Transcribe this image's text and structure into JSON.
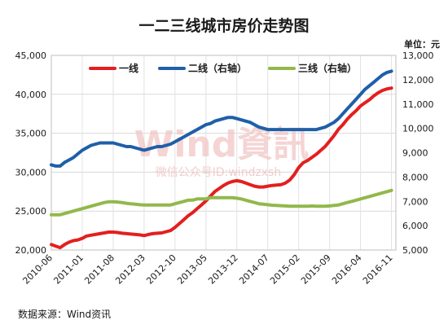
{
  "chart_data": {
    "type": "line",
    "title": "一二三线城市房价走势图",
    "unit_label": "单位：元",
    "source": "数据来源：Wind资讯",
    "watermark": {
      "brand": "Wind資訊",
      "sub": "微信公众号ID:windzxsh"
    },
    "left_axis": {
      "ylim": [
        20000,
        45000
      ],
      "ticks": [
        "20,000",
        "25,000",
        "30,000",
        "35,000",
        "40,000",
        "45,000"
      ]
    },
    "right_axis": {
      "ylim": [
        5000,
        13000
      ],
      "ticks": [
        "5,000",
        "6,000",
        "7,000",
        "8,000",
        "9,000",
        "10,000",
        "11,000",
        "12,000",
        "13,000"
      ]
    },
    "x_ticks": [
      "2010-06",
      "2011-01",
      "2011-08",
      "2012-03",
      "2012-10",
      "2013-05",
      "2013-12",
      "2014-07",
      "2015-02",
      "2015-09",
      "2016-04",
      "2016-11"
    ],
    "grid": true,
    "legend_position": "top",
    "series": [
      {
        "name": "一线",
        "axis": "left",
        "color": "#e31f1f",
        "x": [
          0,
          1,
          2,
          3,
          4,
          5,
          6,
          7,
          8,
          9,
          10,
          11,
          12,
          13,
          14,
          15,
          16,
          17,
          18,
          19,
          20,
          21,
          22,
          23,
          24,
          25,
          26,
          27,
          28,
          29,
          30,
          31,
          32,
          33,
          34,
          35,
          36,
          37,
          38,
          39,
          40,
          41,
          42,
          43,
          44,
          45,
          46,
          47,
          48,
          49,
          50,
          51,
          52,
          53,
          54,
          55,
          56,
          57,
          58,
          59,
          60,
          61,
          62,
          63,
          64,
          65,
          66,
          67,
          68,
          69,
          70,
          71,
          72,
          73,
          74,
          75,
          76,
          77
        ],
        "values": [
          20700,
          20500,
          20300,
          20700,
          21000,
          21200,
          21300,
          21500,
          21800,
          21900,
          22000,
          22100,
          22200,
          22300,
          22300,
          22250,
          22150,
          22100,
          22050,
          22000,
          21950,
          21850,
          22000,
          22100,
          22150,
          22200,
          22350,
          22500,
          22900,
          23400,
          23900,
          24400,
          24800,
          25300,
          25800,
          26300,
          26900,
          27500,
          27900,
          28300,
          28600,
          28800,
          28900,
          28800,
          28600,
          28400,
          28200,
          28100,
          28100,
          28200,
          28300,
          28350,
          28400,
          28600,
          29000,
          29700,
          30600,
          31200,
          31500,
          31900,
          32300,
          32800,
          33300,
          34000,
          34700,
          35500,
          36100,
          36800,
          37400,
          37900,
          38500,
          38900,
          39300,
          39800,
          40200,
          40500,
          40700,
          40800
        ]
      },
      {
        "name": "二线（右轴）",
        "axis": "right",
        "color": "#1f5fa8",
        "x": [
          0,
          1,
          2,
          3,
          4,
          5,
          6,
          7,
          8,
          9,
          10,
          11,
          12,
          13,
          14,
          15,
          16,
          17,
          18,
          19,
          20,
          21,
          22,
          23,
          24,
          25,
          26,
          27,
          28,
          29,
          30,
          31,
          32,
          33,
          34,
          35,
          36,
          37,
          38,
          39,
          40,
          41,
          42,
          43,
          44,
          45,
          46,
          47,
          48,
          49,
          50,
          51,
          52,
          53,
          54,
          55,
          56,
          57,
          58,
          59,
          60,
          61,
          62,
          63,
          64,
          65,
          66,
          67,
          68,
          69,
          70,
          71,
          72,
          73,
          74,
          75,
          76,
          77
        ],
        "values": [
          8500,
          8450,
          8450,
          8600,
          8700,
          8800,
          8950,
          9100,
          9200,
          9300,
          9350,
          9400,
          9400,
          9400,
          9400,
          9350,
          9300,
          9250,
          9250,
          9200,
          9150,
          9100,
          9150,
          9200,
          9250,
          9250,
          9300,
          9350,
          9450,
          9550,
          9650,
          9750,
          9850,
          9950,
          10050,
          10150,
          10200,
          10300,
          10350,
          10400,
          10450,
          10450,
          10400,
          10350,
          10300,
          10250,
          10150,
          10050,
          10000,
          9950,
          9950,
          9950,
          9950,
          9950,
          9950,
          9950,
          9950,
          9950,
          9950,
          9950,
          9950,
          10000,
          10050,
          10150,
          10250,
          10400,
          10600,
          10800,
          11000,
          11200,
          11400,
          11600,
          11750,
          11900,
          12050,
          12200,
          12300,
          12350
        ]
      },
      {
        "name": "三线（右轴）",
        "axis": "right",
        "color": "#92b84b",
        "x": [
          0,
          1,
          2,
          3,
          4,
          5,
          6,
          7,
          8,
          9,
          10,
          11,
          12,
          13,
          14,
          15,
          16,
          17,
          18,
          19,
          20,
          21,
          22,
          23,
          24,
          25,
          26,
          27,
          28,
          29,
          30,
          31,
          32,
          33,
          34,
          35,
          36,
          37,
          38,
          39,
          40,
          41,
          42,
          43,
          44,
          45,
          46,
          47,
          48,
          49,
          50,
          51,
          52,
          53,
          54,
          55,
          56,
          57,
          58,
          59,
          60,
          61,
          62,
          63,
          64,
          65,
          66,
          67,
          68,
          69,
          70,
          71,
          72,
          73,
          74,
          75,
          76,
          77
        ],
        "values": [
          6450,
          6450,
          6450,
          6500,
          6550,
          6600,
          6650,
          6700,
          6750,
          6800,
          6850,
          6900,
          6950,
          6980,
          6980,
          6970,
          6950,
          6920,
          6900,
          6880,
          6860,
          6850,
          6850,
          6850,
          6850,
          6850,
          6850,
          6850,
          6900,
          6950,
          7000,
          7050,
          7050,
          7100,
          7100,
          7100,
          7150,
          7150,
          7150,
          7150,
          7150,
          7150,
          7130,
          7100,
          7050,
          7000,
          6950,
          6900,
          6880,
          6860,
          6840,
          6830,
          6820,
          6810,
          6800,
          6800,
          6800,
          6800,
          6800,
          6810,
          6800,
          6800,
          6800,
          6810,
          6830,
          6850,
          6900,
          6950,
          7000,
          7050,
          7100,
          7150,
          7200,
          7250,
          7300,
          7350,
          7400,
          7450
        ]
      }
    ]
  }
}
